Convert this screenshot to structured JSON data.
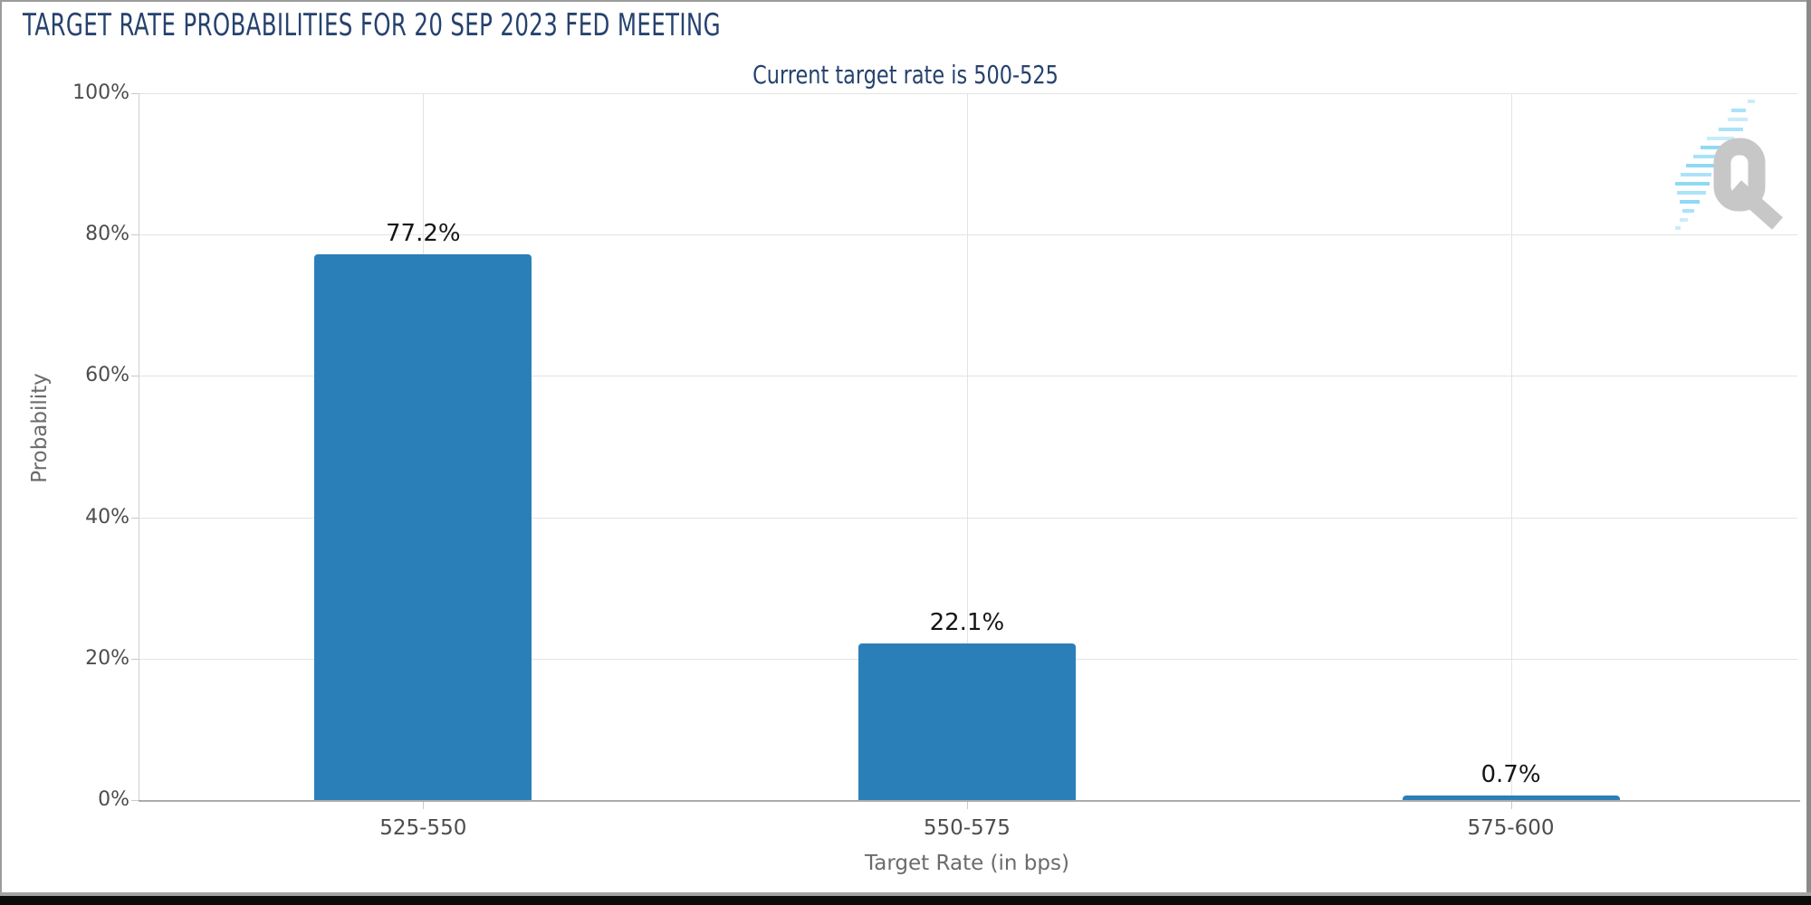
{
  "header": {
    "title": "TARGET RATE PROBABILITIES FOR 20 SEP 2023 FED MEETING",
    "subtitle": "Current target rate is 500-525"
  },
  "chart_data": {
    "type": "bar",
    "title": "TARGET RATE PROBABILITIES FOR 20 SEP 2023 FED MEETING",
    "subtitle": "Current target rate is 500-525",
    "categories": [
      "525-550",
      "550-575",
      "575-600"
    ],
    "values": [
      77.2,
      22.1,
      0.7
    ],
    "value_labels": [
      "77.2%",
      "22.1%",
      "0.7%"
    ],
    "xlabel": "Target Rate (in bps)",
    "ylabel": "Probability",
    "ylim": [
      0,
      100
    ],
    "yticks": [
      0,
      20,
      40,
      60,
      80,
      100
    ],
    "ytick_labels": [
      "0%",
      "20%",
      "40%",
      "60%",
      "80%",
      "100%"
    ],
    "grid": true,
    "legend": "none",
    "bar_color": "#2b7fb8"
  },
  "watermark": {
    "icon": "q-logo",
    "letter": "Q",
    "gray": "#c7c7c7",
    "blue_light": "#c9ecfa",
    "blue_mid": "#8fd9f4"
  },
  "colors": {
    "title_navy": "#26426e",
    "bar_blue": "#2b7fb8",
    "grid_gray": "#e3e3e3",
    "axis_gray": "#ababab",
    "tick_label_gray": "#4d4d4d",
    "axis_title_gray": "#6b6b6b",
    "frame_gray": "#9b9b9b",
    "footer_black": "#0b0b0b"
  }
}
